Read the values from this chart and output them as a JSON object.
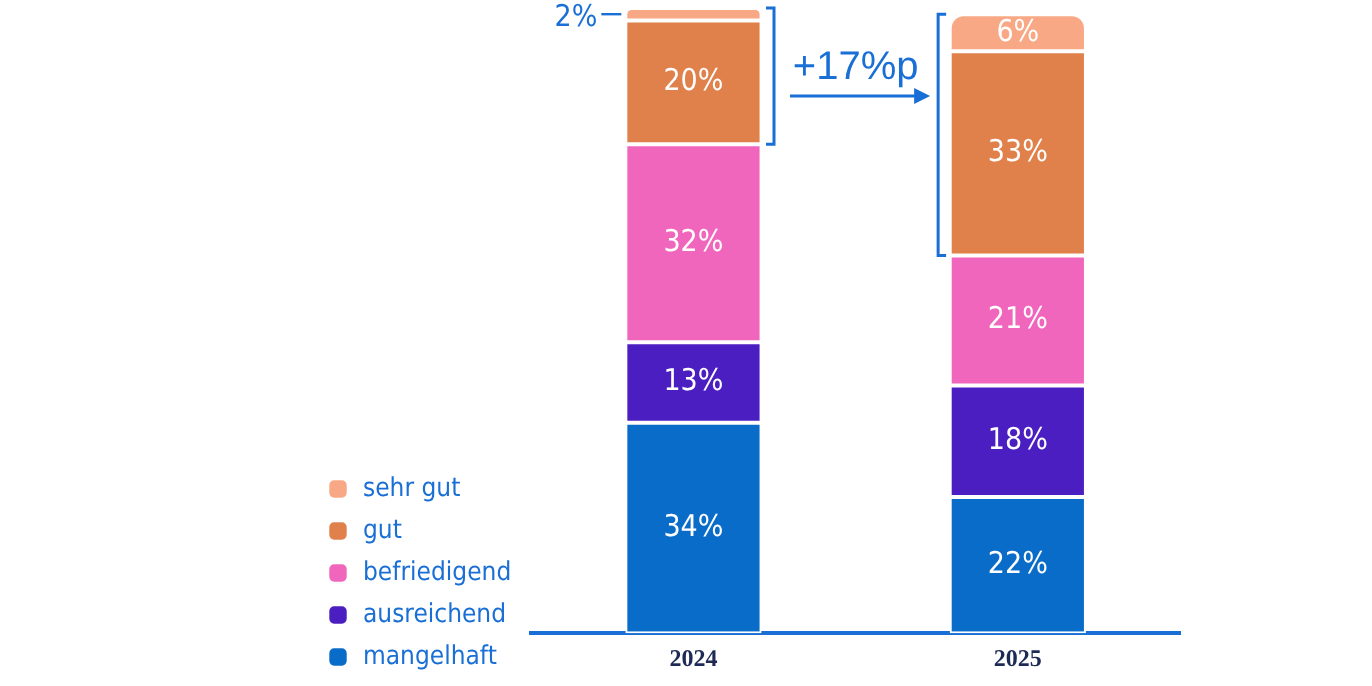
{
  "chart_data": {
    "type": "bar",
    "stacked": true,
    "categories": [
      "2024",
      "2025"
    ],
    "series": [
      {
        "name": "mangelhaft",
        "color": "#0a6cc9",
        "values": [
          34,
          22
        ],
        "value_labels": [
          "34%",
          "22%"
        ]
      },
      {
        "name": "ausreichend",
        "color": "#4a1ec0",
        "values": [
          13,
          18
        ],
        "value_labels": [
          "13%",
          "18%"
        ]
      },
      {
        "name": "befriedigend",
        "color": "#f066bd",
        "values": [
          32,
          21
        ],
        "value_labels": [
          "32%",
          "21%"
        ]
      },
      {
        "name": "gut",
        "color": "#e0804a",
        "values": [
          20,
          33
        ],
        "value_labels": [
          "20%",
          "33%"
        ]
      },
      {
        "name": "sehr gut",
        "color": "#f8a884",
        "values": [
          2,
          6
        ],
        "value_labels": [
          "2%",
          "6%"
        ]
      }
    ],
    "legend": "left",
    "grid": false,
    "annotations": [
      "+17%p"
    ]
  }
}
